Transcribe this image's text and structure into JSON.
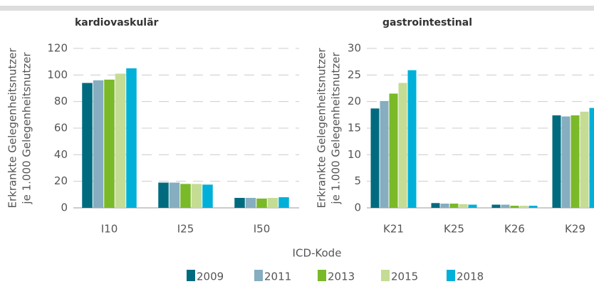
{
  "xlabel": "ICD-Kode",
  "chart_data": [
    {
      "type": "bar",
      "title": "kardiovaskulär",
      "ylabel": [
        "Erkrankte Gelegenheitsnutzer",
        "je 1.000 Gelegenheitsnutzer"
      ],
      "categories": [
        "I10",
        "I25",
        "I50"
      ],
      "series": [
        {
          "name": "2009",
          "color": "#006b7f",
          "values": [
            94,
            19,
            7.5
          ]
        },
        {
          "name": "2011",
          "color": "#86adc0",
          "values": [
            96,
            19,
            7.5
          ]
        },
        {
          "name": "2013",
          "color": "#7ab928",
          "values": [
            96.5,
            18,
            7
          ]
        },
        {
          "name": "2015",
          "color": "#c5dc94",
          "values": [
            101,
            18,
            7.5
          ]
        },
        {
          "name": "2018",
          "color": "#00b0d8",
          "values": [
            105,
            17.5,
            8
          ]
        }
      ],
      "ylim": [
        0,
        120
      ],
      "yticks": [
        0,
        20,
        40,
        60,
        80,
        100,
        120
      ],
      "grid": true
    },
    {
      "type": "bar",
      "title": "gastrointestinal",
      "ylabel": [
        "Erkrankte Gelegenheitsnutzer",
        "je 1.000 Gelegenheitsnutzer"
      ],
      "categories": [
        "K21",
        "K25",
        "K26",
        "K29"
      ],
      "series": [
        {
          "name": "2009",
          "color": "#006b7f",
          "values": [
            18.7,
            0.9,
            0.6,
            17.4
          ]
        },
        {
          "name": "2011",
          "color": "#86adc0",
          "values": [
            20.1,
            0.8,
            0.6,
            17.2
          ]
        },
        {
          "name": "2013",
          "color": "#7ab928",
          "values": [
            21.5,
            0.8,
            0.4,
            17.4
          ]
        },
        {
          "name": "2015",
          "color": "#c5dc94",
          "values": [
            23.5,
            0.7,
            0.4,
            18.1
          ]
        },
        {
          "name": "2018",
          "color": "#00b0d8",
          "values": [
            25.9,
            0.6,
            0.4,
            18.8
          ]
        }
      ],
      "ylim": [
        0,
        30
      ],
      "yticks": [
        0,
        5,
        10,
        15,
        20,
        25,
        30
      ],
      "grid": true
    }
  ]
}
